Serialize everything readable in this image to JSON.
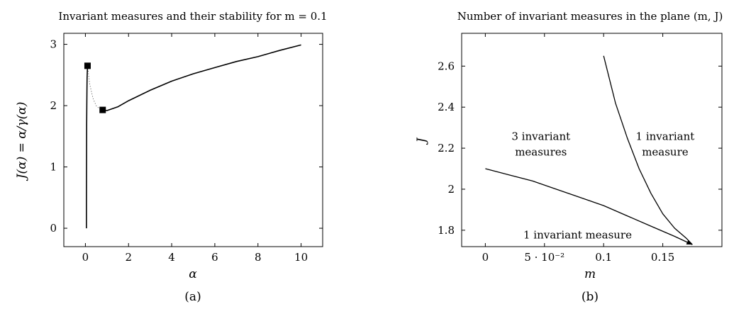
{
  "chart_data": [
    {
      "type": "line",
      "title": "Invariant measures and their stability for m = 0.1",
      "xlabel": "α",
      "ylabel": "J(α) = α/γ(α)",
      "xlim": [
        -1,
        11
      ],
      "ylim": [
        -0.3,
        3.18
      ],
      "xticks": [
        "0",
        "2",
        "4",
        "6",
        "8",
        "10"
      ],
      "yticks": [
        "0",
        "1",
        "2",
        "3"
      ],
      "grid": false,
      "caption": "(a)",
      "series": [
        {
          "style": "solid",
          "x": [
            0.05,
            0.05,
            0.052,
            0.056,
            0.06,
            0.066,
            0.072,
            0.08,
            0.09,
            0.1
          ],
          "y": [
            0.0,
            0.4,
            0.9,
            1.3,
            1.7,
            2.0,
            2.25,
            2.45,
            2.58,
            2.65
          ]
        },
        {
          "style": "dotted",
          "x": [
            0.1,
            0.2,
            0.35,
            0.5,
            0.65,
            0.8
          ],
          "y": [
            2.65,
            2.35,
            2.12,
            2.0,
            1.95,
            1.93
          ]
        },
        {
          "style": "solid",
          "x": [
            0.8,
            1.0,
            1.5,
            2.0,
            3.0,
            4.0,
            5.0,
            6.0,
            7.0,
            8.0,
            9.0,
            10.0
          ],
          "y": [
            1.93,
            1.92,
            1.98,
            2.08,
            2.25,
            2.4,
            2.52,
            2.62,
            2.72,
            2.8,
            2.9,
            2.99
          ]
        }
      ],
      "markers": [
        {
          "shape": "square",
          "x": 0.1,
          "y": 2.65
        },
        {
          "shape": "square",
          "x": 0.8,
          "y": 1.93
        }
      ]
    },
    {
      "type": "line",
      "title": "Number of invariant measures in the plane (m, J)",
      "xlabel": "m",
      "ylabel": "J",
      "xlim": [
        -0.02,
        0.2
      ],
      "ylim": [
        1.72,
        2.76
      ],
      "xticks": [
        "0",
        "5 · 10⁻²",
        "0.1",
        "0.15"
      ],
      "xtick_values": [
        0,
        0.05,
        0.1,
        0.15
      ],
      "yticks": [
        "1.8",
        "2",
        "2.2",
        "2.4",
        "2.6"
      ],
      "ytick_values": [
        1.8,
        2.0,
        2.2,
        2.4,
        2.6
      ],
      "grid": false,
      "caption": "(b)",
      "series": [
        {
          "x": [
            0.0,
            0.02,
            0.04,
            0.06,
            0.08,
            0.1,
            0.12,
            0.14,
            0.16,
            0.175
          ],
          "y": [
            2.1,
            2.07,
            2.04,
            2.0,
            1.96,
            1.92,
            1.87,
            1.82,
            1.77,
            1.73
          ]
        },
        {
          "x": [
            0.1,
            0.11,
            0.12,
            0.13,
            0.14,
            0.15,
            0.16,
            0.17,
            0.175
          ],
          "y": [
            2.65,
            2.42,
            2.25,
            2.1,
            1.98,
            1.88,
            1.81,
            1.76,
            1.73
          ]
        }
      ],
      "annotations": [
        {
          "lines": [
            "3 invariant",
            "measures"
          ],
          "x": 0.047,
          "y": 2.24
        },
        {
          "lines": [
            "1 invariant",
            "measure"
          ],
          "x": 0.152,
          "y": 2.24
        },
        {
          "lines": [
            "1 invariant measure"
          ],
          "x": 0.078,
          "y": 1.76
        }
      ]
    }
  ]
}
